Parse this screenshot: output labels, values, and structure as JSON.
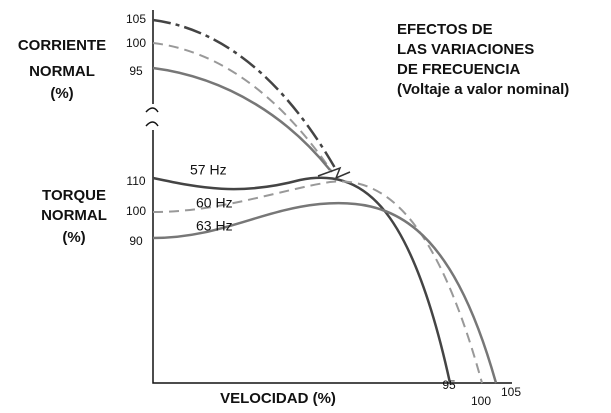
{
  "title": [
    "EFECTOS DE",
    "LAS VARIACIONES",
    "DE FRECUENCIA",
    "(Voltaje a valor nominal)"
  ],
  "current_axis": {
    "label": [
      "CORRIENTE",
      "NORMAL",
      "(%)"
    ],
    "ticks": [
      "105",
      "100",
      "95"
    ]
  },
  "torque_axis": {
    "label": [
      "TORQUE",
      "NORMAL",
      "(%)"
    ],
    "ticks": [
      "110",
      "100",
      "90"
    ]
  },
  "curve_labels": [
    "57 Hz",
    "60 Hz",
    "63 Hz"
  ],
  "x_axis": {
    "label": "VELOCIDAD (%)",
    "ticks": [
      "95",
      "100",
      "105"
    ]
  }
}
